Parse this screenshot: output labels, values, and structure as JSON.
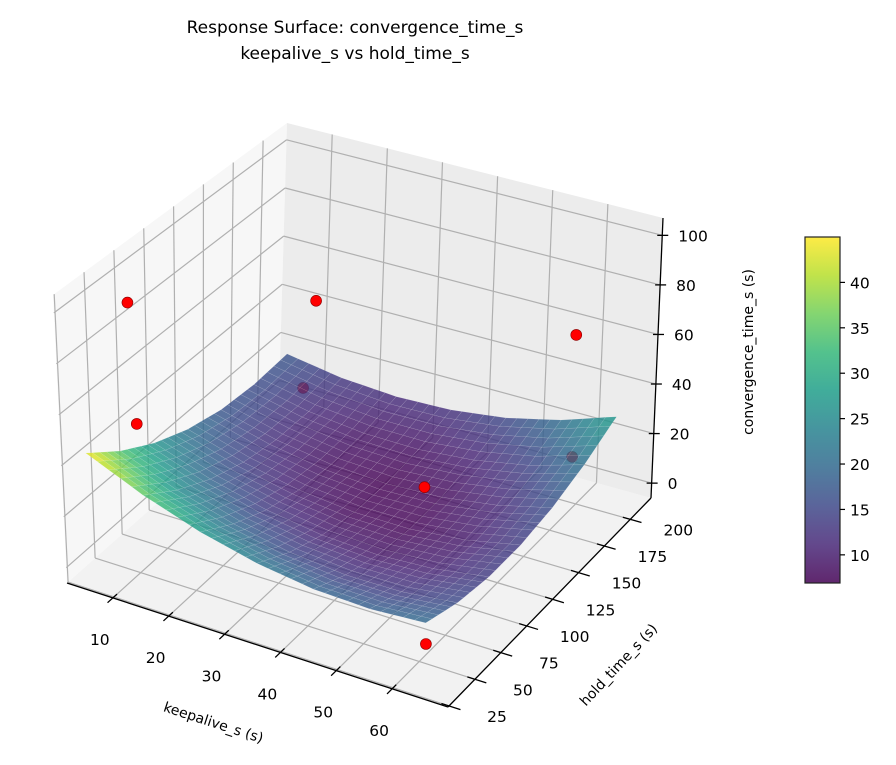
{
  "chart_data": {
    "type": "surface3d",
    "title": "Response Surface: convergence_time_s",
    "subtitle": "keepalive_s vs hold_time_s",
    "xlabel": "keepalive_s (s)",
    "ylabel": "hold_time_s (s)",
    "zlabel": "convergence_time_s (s)",
    "colormap": "viridis",
    "xlim": [
      1.8,
      70
    ],
    "ylim": [
      24,
      220
    ],
    "zlim": [
      -6,
      107
    ],
    "clim": [
      6.9,
      45
    ],
    "xticks": [
      10,
      20,
      30,
      40,
      50,
      60
    ],
    "yticks": [
      25,
      50,
      75,
      100,
      125,
      150,
      175,
      200
    ],
    "zticks": [
      0,
      20,
      40,
      60,
      80,
      100
    ],
    "colorbar_ticks": [
      10,
      15,
      20,
      25,
      30,
      35,
      40
    ],
    "surface": {
      "x": [
        5,
        15,
        25,
        35,
        45,
        55,
        65
      ],
      "y": [
        30,
        60,
        90,
        120,
        150,
        180,
        210
      ],
      "z": [
        [
          45.0,
          34.8,
          26.8,
          21.0,
          17.4,
          16.1,
          17.0
        ],
        [
          35.3,
          26.1,
          19.1,
          14.3,
          11.7,
          11.4,
          13.3
        ],
        [
          27.8,
          19.6,
          13.6,
          9.8,
          8.2,
          8.9,
          11.8
        ],
        [
          22.5,
          15.3,
          10.3,
          7.5,
          6.9,
          8.6,
          12.5
        ],
        [
          19.4,
          13.2,
          9.2,
          7.4,
          7.9,
          10.6,
          15.4
        ],
        [
          18.6,
          13.4,
          10.4,
          9.6,
          11.1,
          14.7,
          20.6
        ],
        [
          20.0,
          15.8,
          13.8,
          14.0,
          16.4,
          21.1,
          28.0
        ]
      ]
    },
    "points": [
      {
        "x": 5,
        "y": 70,
        "z": 90
      },
      {
        "x": 5,
        "y": 75,
        "z": 40
      },
      {
        "x": 10,
        "y": 210,
        "z": 42
      },
      {
        "x": 10,
        "y": 200,
        "z": 10
      },
      {
        "x": 53,
        "y": 92,
        "z": 40
      },
      {
        "x": 60,
        "y": 195,
        "z": 15
      },
      {
        "x": 60,
        "y": 195,
        "z": 64
      },
      {
        "x": 65,
        "y": 30,
        "z": 12
      }
    ],
    "point_color": "#ff0000",
    "grid": true
  }
}
